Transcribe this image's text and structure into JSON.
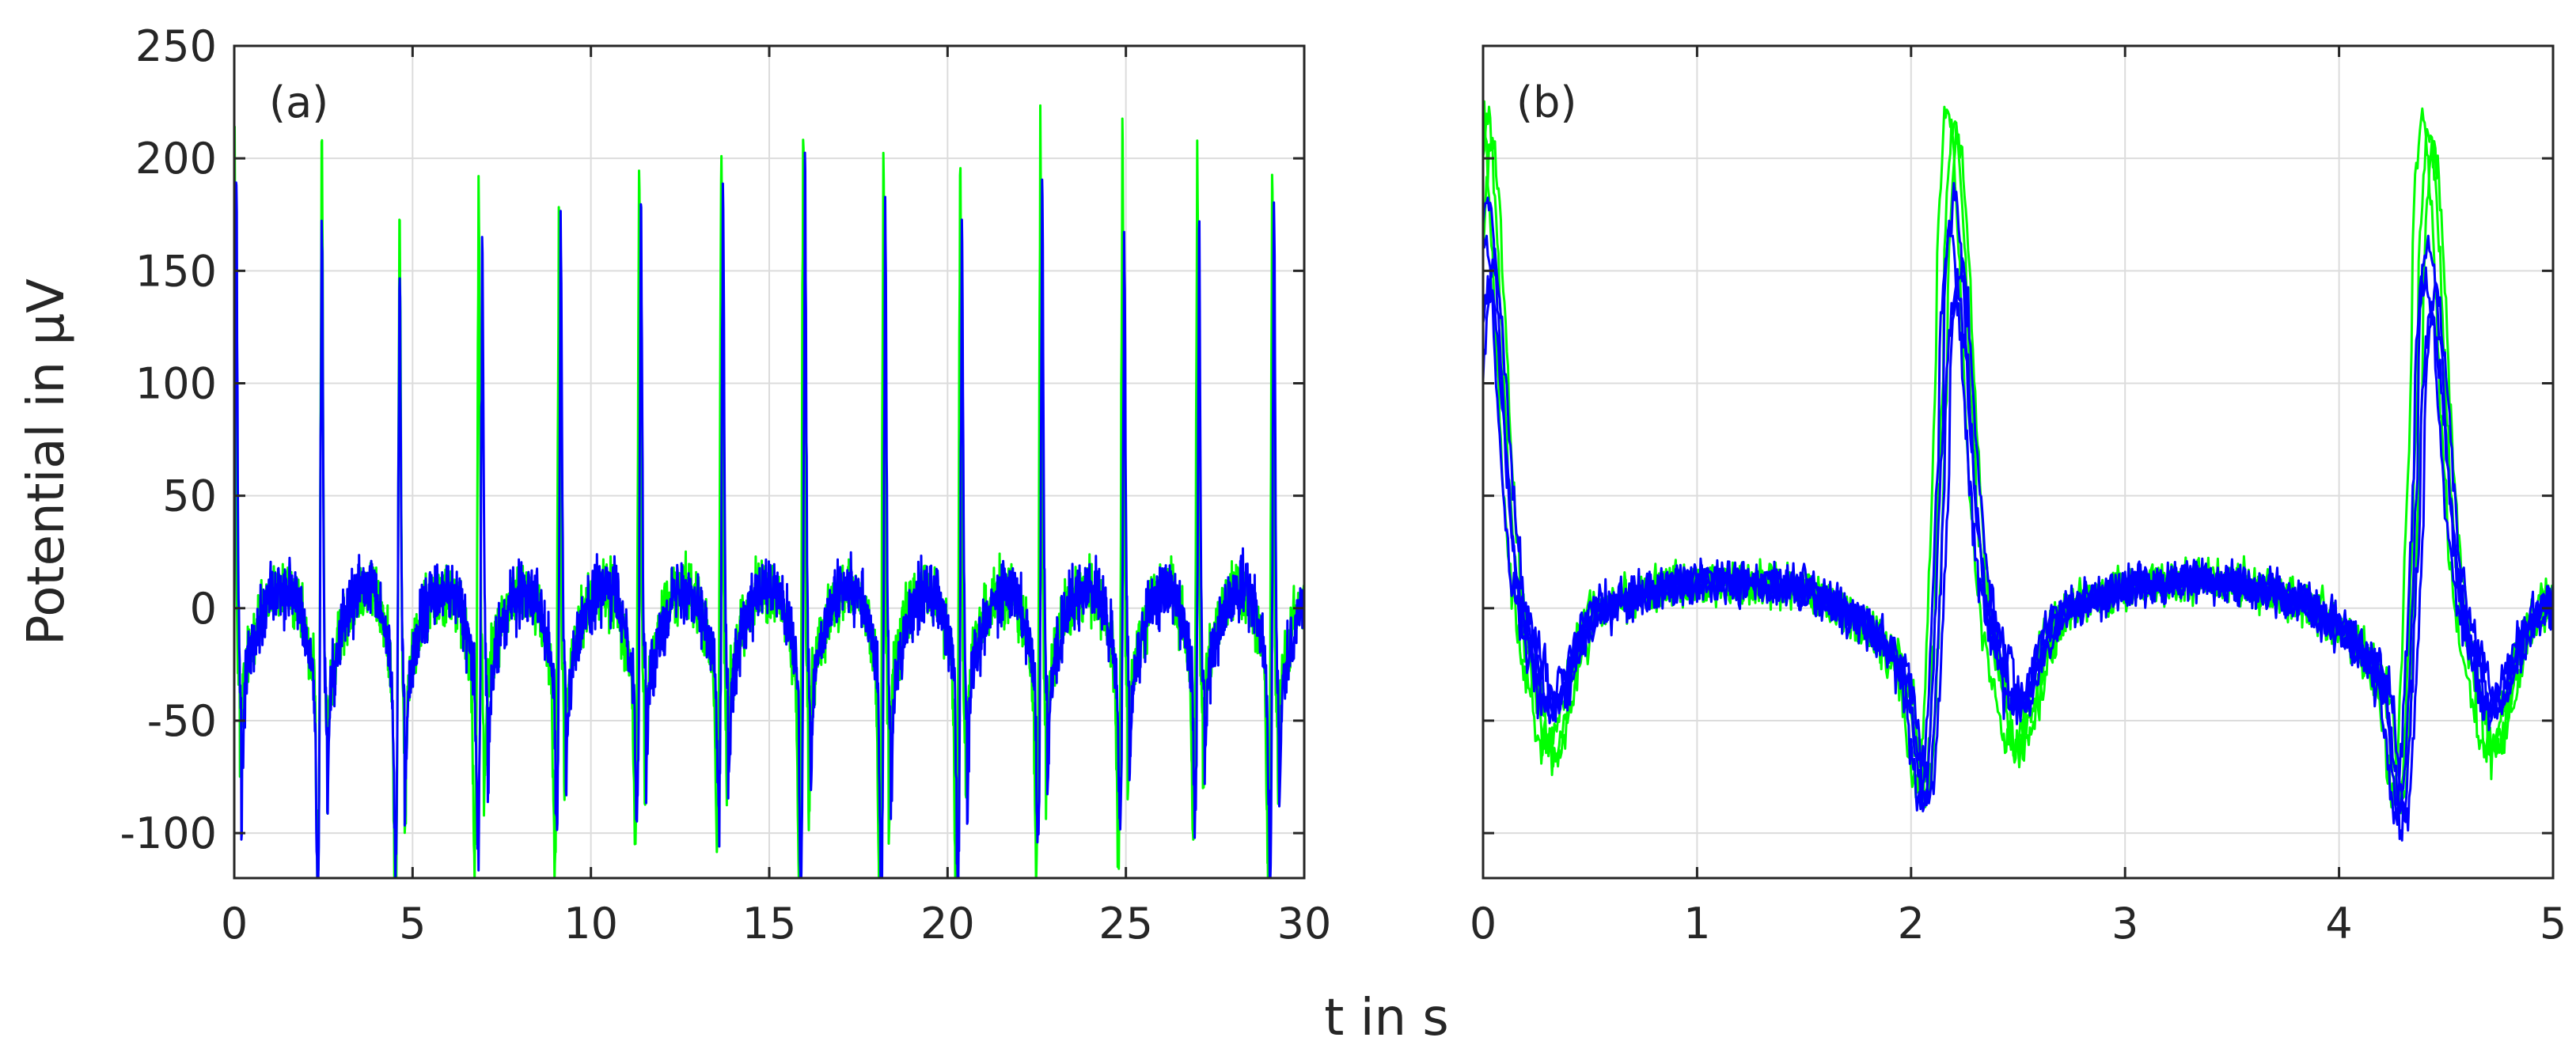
{
  "figure": {
    "ylabel": "Potential in μV",
    "xlabel": "t in s",
    "colors": {
      "green": "#00ff00",
      "blue": "#0000ff",
      "grid": "#dcdcdc",
      "axis": "#262626"
    }
  },
  "chart_data": [
    {
      "type": "line",
      "panel_label": "(a)",
      "xlim": [
        0,
        30
      ],
      "ylim": [
        -120,
        250
      ],
      "xticks": [
        0,
        5,
        10,
        15,
        20,
        25,
        30
      ],
      "xtick_labels": [
        "0",
        "5",
        "10",
        "15",
        "20",
        "25",
        "30"
      ],
      "yticks": [
        -100,
        -50,
        0,
        50,
        100,
        150,
        200,
        250
      ],
      "ytick_labels": [
        "-100",
        "-50",
        "0",
        "50",
        "100",
        "150",
        "200",
        "250"
      ],
      "grid": true,
      "beat_period": 2.22,
      "series": [
        {
          "color": "green",
          "beat_times": [
            0.0,
            2.45,
            4.63,
            6.85,
            9.1,
            11.35,
            13.65,
            15.95,
            18.2,
            20.35,
            22.6,
            24.9,
            27.0,
            29.1
          ],
          "peak_values": [
            224,
            215,
            188,
            192,
            178,
            205,
            206,
            222,
            210,
            208,
            214,
            210,
            203,
            203
          ],
          "trough_values": [
            -58,
            -90,
            -107,
            -80,
            -70,
            -70,
            -70,
            -88,
            -95,
            -101,
            -80,
            -75,
            -70,
            -90
          ]
        },
        {
          "color": "blue",
          "beat_times": [
            0.05,
            2.45,
            4.63,
            6.95,
            9.15,
            11.4,
            13.7,
            16.0,
            18.25,
            20.4,
            22.65,
            24.95,
            27.05,
            29.15
          ],
          "peak_values": [
            192,
            174,
            164,
            161,
            175,
            180,
            195,
            199,
            180,
            181,
            195,
            170,
            172,
            195
          ],
          "trough_values": [
            -82,
            -92,
            -80,
            -75,
            -55,
            -55,
            -58,
            -86,
            -95,
            -85,
            -68,
            -62,
            -60,
            -82
          ]
        }
      ]
    },
    {
      "type": "line",
      "panel_label": "(b)",
      "xlim": [
        0,
        5
      ],
      "ylim": [
        -120,
        250
      ],
      "xticks": [
        0,
        1,
        2,
        3,
        4,
        5
      ],
      "xtick_labels": [
        "0",
        "1",
        "2",
        "3",
        "4",
        "5"
      ],
      "yticks": [
        -100,
        -50,
        0,
        50,
        100,
        150,
        200,
        250
      ],
      "grid": true,
      "series": [
        {
          "color": "green",
          "peak_values": [
            224,
            220
          ],
          "trough_values": [
            -83,
            -85
          ]
        },
        {
          "color": "blue",
          "peak_values": [
            192,
            174
          ],
          "trough_values": [
            -82,
            -90
          ]
        }
      ]
    }
  ]
}
